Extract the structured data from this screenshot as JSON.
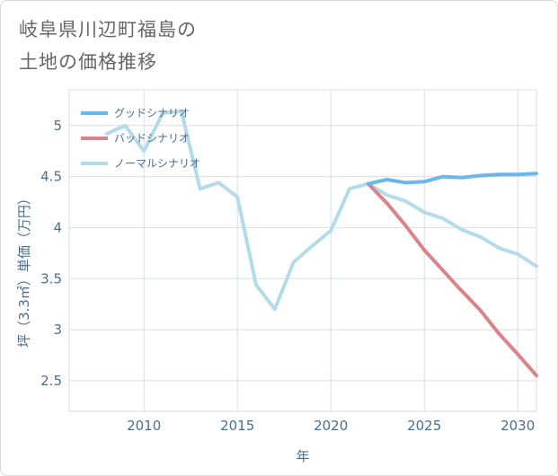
{
  "page": {
    "title_line1": "岐阜県川辺町福島の",
    "title_line2": "土地の価格推移"
  },
  "chart_data": {
    "type": "line",
    "xlabel": "年",
    "ylabel": "坪（3.3㎡）単価（万円）",
    "xlim": [
      2006,
      2031
    ],
    "ylim": [
      2.2,
      5.35
    ],
    "x_ticks": [
      2010,
      2015,
      2020,
      2025,
      2030
    ],
    "y_ticks": [
      2.5,
      3,
      3.5,
      4,
      4.5,
      5
    ],
    "grid": true,
    "legend_position": "top-left",
    "series": [
      {
        "name": "グッドシナリオ",
        "color": "#6ab7ec",
        "x": [
          2022,
          2023,
          2024,
          2025,
          2026,
          2027,
          2028,
          2029,
          2030,
          2031
        ],
        "y": [
          4.43,
          4.47,
          4.44,
          4.45,
          4.5,
          4.49,
          4.51,
          4.52,
          4.52,
          4.53
        ]
      },
      {
        "name": "バッドシナリオ",
        "color": "#db8389",
        "x": [
          2022,
          2023,
          2024,
          2025,
          2026,
          2027,
          2028,
          2029,
          2030,
          2031
        ],
        "y": [
          4.43,
          4.24,
          4.02,
          3.78,
          3.58,
          3.38,
          3.19,
          2.96,
          2.76,
          2.55
        ]
      },
      {
        "name": "ノーマルシナリオ",
        "color": "#b3dbea",
        "x": [
          2008,
          2009,
          2010,
          2011,
          2012,
          2013,
          2014,
          2015,
          2016,
          2017,
          2018,
          2019,
          2020,
          2021,
          2022,
          2023,
          2024,
          2025,
          2026,
          2027,
          2028,
          2029,
          2030,
          2031
        ],
        "y": [
          4.92,
          5.0,
          4.75,
          5.12,
          5.14,
          4.38,
          4.44,
          4.3,
          3.44,
          3.2,
          3.66,
          3.82,
          3.97,
          4.38,
          4.43,
          4.32,
          4.26,
          4.15,
          4.09,
          3.98,
          3.91,
          3.8,
          3.74,
          3.62
        ]
      }
    ]
  }
}
